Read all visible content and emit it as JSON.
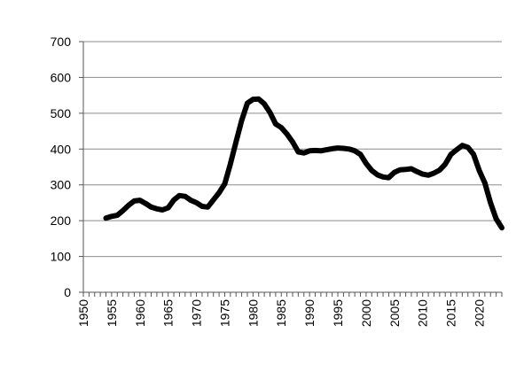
{
  "chart_data": {
    "type": "line",
    "title": "",
    "xlabel": "",
    "ylabel": "",
    "xlim": [
      1950,
      2024
    ],
    "ylim": [
      0,
      700
    ],
    "grid": true,
    "legend": "none",
    "y_ticks": [
      0,
      100,
      200,
      300,
      400,
      500,
      600,
      700
    ],
    "x_tick_labels": [
      1950,
      1955,
      1960,
      1965,
      1970,
      1975,
      1980,
      1985,
      1990,
      1995,
      2000,
      2005,
      2010,
      2015,
      2020
    ],
    "line_color": "#000000",
    "grid_color": "#8c8c8c",
    "series": [
      {
        "x": [
          1954,
          1955,
          1956,
          1957,
          1958,
          1959,
          1960,
          1961,
          1962,
          1963,
          1964,
          1965,
          1966,
          1967,
          1968,
          1969,
          1970,
          1971,
          1972,
          1973,
          1974,
          1975,
          1976,
          1977,
          1978,
          1979,
          1980,
          1981,
          1982,
          1983,
          1984,
          1985,
          1986,
          1987,
          1988,
          1989,
          1990,
          1991,
          1992,
          1993,
          1994,
          1995,
          1996,
          1997,
          1998,
          1999,
          2000,
          2001,
          2002,
          2003,
          2004,
          2005,
          2006,
          2007,
          2008,
          2009,
          2010,
          2011,
          2012,
          2013,
          2014,
          2015,
          2016,
          2017,
          2018,
          2019,
          2020,
          2021,
          2022,
          2023,
          2024
        ],
        "y": [
          207,
          212,
          215,
          228,
          243,
          255,
          257,
          248,
          238,
          233,
          230,
          236,
          258,
          270,
          268,
          257,
          250,
          240,
          238,
          258,
          278,
          303,
          358,
          420,
          480,
          528,
          539,
          540,
          526,
          502,
          470,
          460,
          442,
          420,
          392,
          389,
          395,
          396,
          395,
          398,
          401,
          403,
          402,
          400,
          395,
          385,
          360,
          340,
          328,
          322,
          320,
          335,
          342,
          343,
          345,
          337,
          330,
          327,
          333,
          341,
          358,
          385,
          398,
          410,
          405,
          385,
          340,
          305,
          250,
          205,
          180
        ]
      }
    ]
  }
}
